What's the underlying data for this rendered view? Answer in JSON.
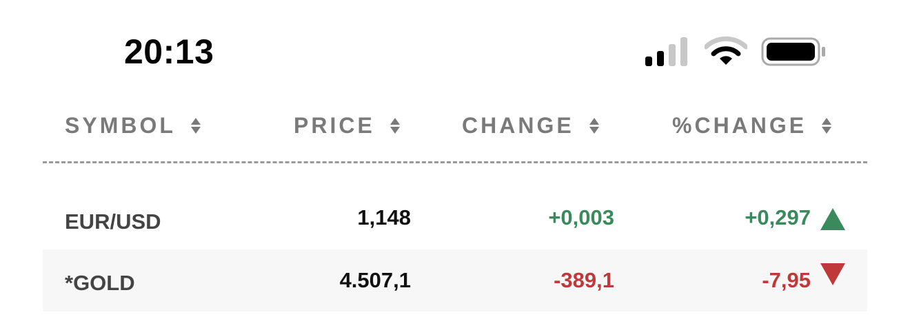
{
  "status_bar": {
    "time": "20:13",
    "icons": [
      "cellular-signal-icon",
      "wifi-icon",
      "battery-icon"
    ]
  },
  "table": {
    "columns": [
      {
        "label": "SYMBOL",
        "sort_icon": "sort-icon"
      },
      {
        "label": "PRICE",
        "sort_icon": "sort-icon"
      },
      {
        "label": "CHANGE",
        "sort_icon": "sort-icon"
      },
      {
        "label": "%CHANGE",
        "sort_icon": "sort-icon"
      }
    ],
    "rows": [
      {
        "symbol": "EUR/USD",
        "price": "1,148",
        "change": "+0,003",
        "pct_change": "+0,297",
        "direction": "up"
      },
      {
        "symbol": "*GOLD",
        "price": "4.507,1",
        "change": "-389,1",
        "pct_change": "-7,95",
        "direction": "down"
      }
    ]
  },
  "colors": {
    "up": "#3a8a5e",
    "down": "#c0393a",
    "header": "#7a7a7a",
    "row_alt_bg": "#f7f7f7"
  }
}
